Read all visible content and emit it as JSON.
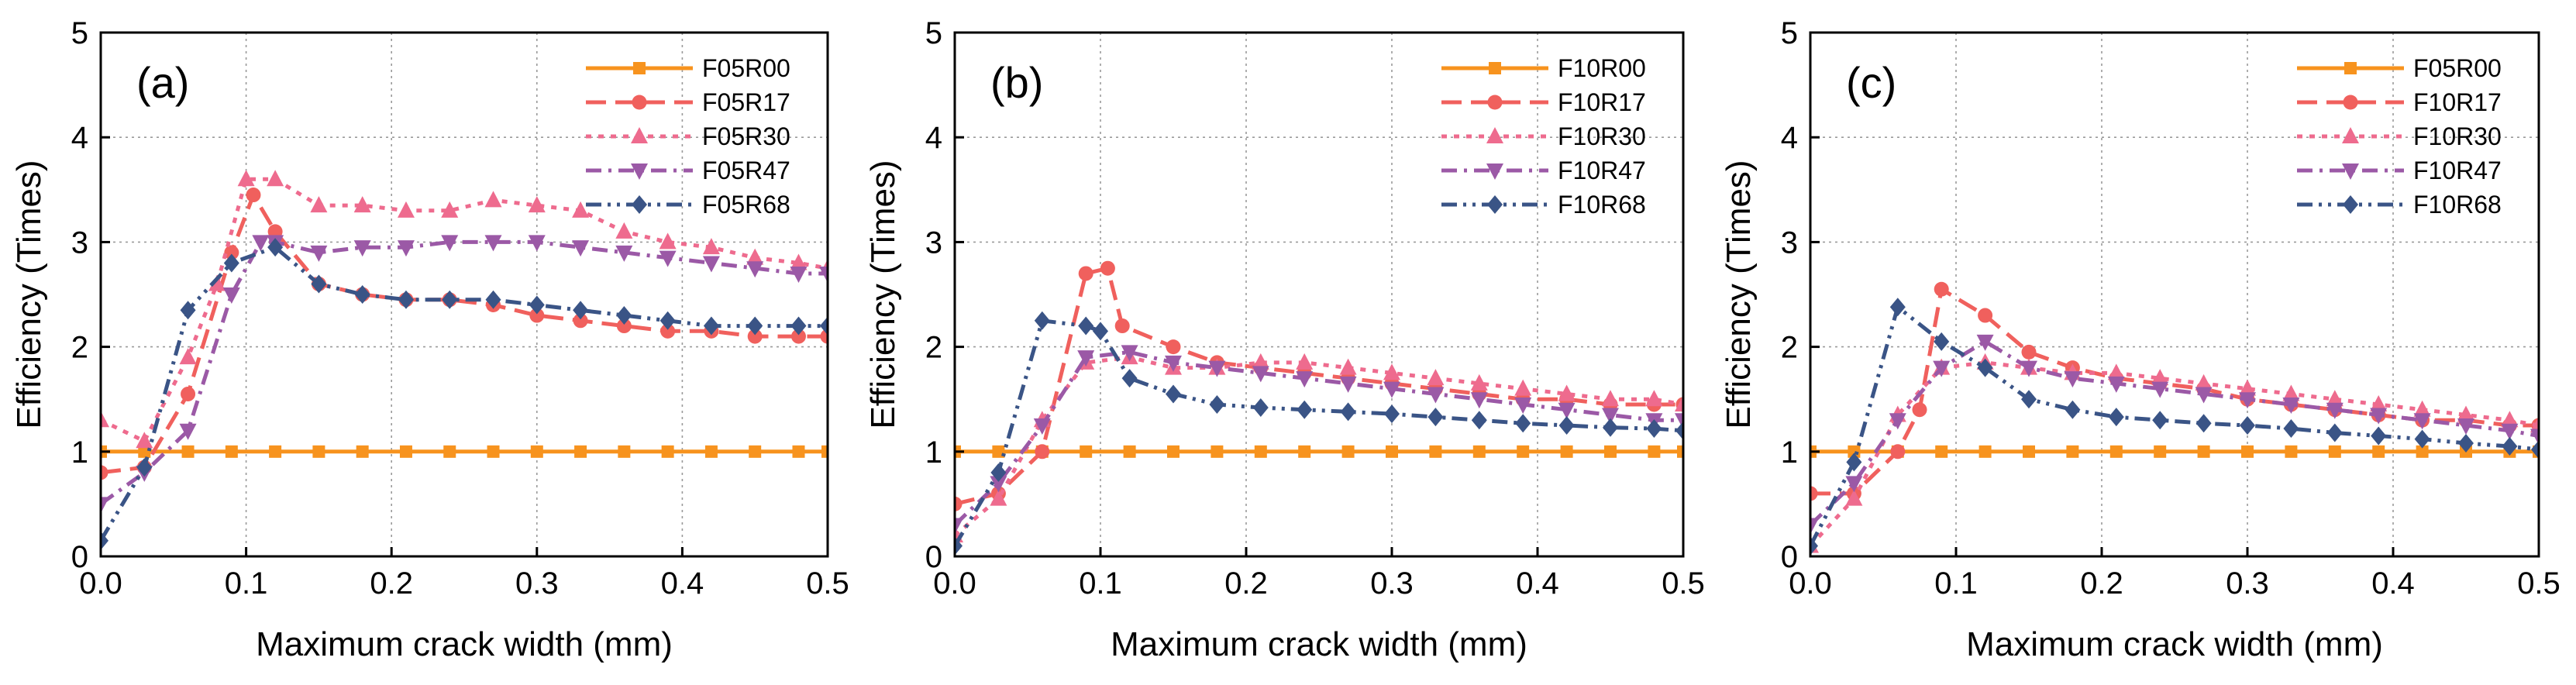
{
  "chart_data": [
    {
      "type": "line",
      "panel_label": "(a)",
      "xlabel": "Maximum crack width (mm)",
      "ylabel": "Efficiency (Times)",
      "xlim": [
        0,
        0.5
      ],
      "ylim": [
        0,
        5
      ],
      "xticks": [
        "0.0",
        "0.1",
        "0.2",
        "0.3",
        "0.4",
        "0.5"
      ],
      "yticks": [
        "0",
        "1",
        "2",
        "3",
        "4",
        "5"
      ],
      "grid": true,
      "legend_position": "top-right",
      "series": [
        {
          "name": "F05R00",
          "color": "#F7931E",
          "marker": "square",
          "dash": "solid",
          "x": [
            0,
            0.03,
            0.06,
            0.09,
            0.12,
            0.15,
            0.18,
            0.21,
            0.24,
            0.27,
            0.3,
            0.33,
            0.36,
            0.39,
            0.42,
            0.45,
            0.48,
            0.5
          ],
          "y": [
            1,
            1,
            1,
            1,
            1,
            1,
            1,
            1,
            1,
            1,
            1,
            1,
            1,
            1,
            1,
            1,
            1,
            1
          ]
        },
        {
          "name": "F05R17",
          "color": "#F0605D",
          "marker": "circle",
          "dash": "longdash",
          "x": [
            0,
            0.03,
            0.06,
            0.09,
            0.105,
            0.12,
            0.15,
            0.18,
            0.21,
            0.24,
            0.27,
            0.3,
            0.33,
            0.36,
            0.39,
            0.42,
            0.45,
            0.48,
            0.5
          ],
          "y": [
            0.8,
            0.85,
            1.55,
            2.9,
            3.45,
            3.1,
            2.6,
            2.5,
            2.45,
            2.45,
            2.4,
            2.3,
            2.25,
            2.2,
            2.15,
            2.15,
            2.1,
            2.1,
            2.1
          ]
        },
        {
          "name": "F05R30",
          "color": "#EE6B8E",
          "marker": "triangle-up",
          "dash": "dot",
          "x": [
            0,
            0.03,
            0.06,
            0.08,
            0.1,
            0.12,
            0.15,
            0.18,
            0.21,
            0.24,
            0.27,
            0.3,
            0.33,
            0.36,
            0.39,
            0.42,
            0.45,
            0.48,
            0.5
          ],
          "y": [
            1.3,
            1.1,
            1.9,
            2.6,
            3.6,
            3.6,
            3.35,
            3.35,
            3.3,
            3.3,
            3.4,
            3.35,
            3.3,
            3.1,
            3.0,
            2.95,
            2.85,
            2.8,
            2.75
          ]
        },
        {
          "name": "F05R47",
          "color": "#9B59A6",
          "marker": "triangle-down",
          "dash": "dashdot",
          "x": [
            0,
            0.03,
            0.06,
            0.09,
            0.11,
            0.12,
            0.15,
            0.18,
            0.21,
            0.24,
            0.27,
            0.3,
            0.33,
            0.36,
            0.39,
            0.42,
            0.45,
            0.48,
            0.5
          ],
          "y": [
            0.5,
            0.8,
            1.2,
            2.5,
            3.0,
            3.0,
            2.9,
            2.95,
            2.95,
            3.0,
            3.0,
            3.0,
            2.95,
            2.9,
            2.85,
            2.8,
            2.75,
            2.7,
            2.7
          ]
        },
        {
          "name": "F05R68",
          "color": "#3A5486",
          "marker": "diamond",
          "dash": "dashdotdot",
          "x": [
            0,
            0.03,
            0.06,
            0.09,
            0.12,
            0.15,
            0.18,
            0.21,
            0.24,
            0.27,
            0.3,
            0.33,
            0.36,
            0.39,
            0.42,
            0.45,
            0.48,
            0.5
          ],
          "y": [
            0.15,
            0.85,
            2.35,
            2.8,
            2.95,
            2.6,
            2.5,
            2.45,
            2.45,
            2.45,
            2.4,
            2.35,
            2.3,
            2.25,
            2.2,
            2.2,
            2.2,
            2.2
          ]
        }
      ]
    },
    {
      "type": "line",
      "panel_label": "(b)",
      "xlabel": "Maximum crack width (mm)",
      "ylabel": "Efficiency (Times)",
      "xlim": [
        0,
        0.5
      ],
      "ylim": [
        0,
        5
      ],
      "xticks": [
        "0.0",
        "0.1",
        "0.2",
        "0.3",
        "0.4",
        "0.5"
      ],
      "yticks": [
        "0",
        "1",
        "2",
        "3",
        "4",
        "5"
      ],
      "grid": true,
      "legend_position": "top-right",
      "series": [
        {
          "name": "F10R00",
          "color": "#F7931E",
          "marker": "square",
          "dash": "solid",
          "x": [
            0,
            0.03,
            0.06,
            0.09,
            0.12,
            0.15,
            0.18,
            0.21,
            0.24,
            0.27,
            0.3,
            0.33,
            0.36,
            0.39,
            0.42,
            0.45,
            0.48,
            0.5
          ],
          "y": [
            1,
            1,
            1,
            1,
            1,
            1,
            1,
            1,
            1,
            1,
            1,
            1,
            1,
            1,
            1,
            1,
            1,
            1
          ]
        },
        {
          "name": "F10R17",
          "color": "#F0605D",
          "marker": "circle",
          "dash": "longdash",
          "x": [
            0,
            0.03,
            0.06,
            0.09,
            0.105,
            0.115,
            0.15,
            0.18,
            0.21,
            0.24,
            0.27,
            0.3,
            0.33,
            0.36,
            0.39,
            0.42,
            0.45,
            0.48,
            0.5
          ],
          "y": [
            0.5,
            0.6,
            1.0,
            2.7,
            2.75,
            2.2,
            2.0,
            1.85,
            1.8,
            1.75,
            1.7,
            1.65,
            1.6,
            1.55,
            1.5,
            1.5,
            1.45,
            1.45,
            1.45
          ]
        },
        {
          "name": "F10R30",
          "color": "#EE6B8E",
          "marker": "triangle-up",
          "dash": "dot",
          "x": [
            0,
            0.03,
            0.06,
            0.09,
            0.12,
            0.15,
            0.18,
            0.21,
            0.24,
            0.27,
            0.3,
            0.33,
            0.36,
            0.39,
            0.42,
            0.45,
            0.48,
            0.5
          ],
          "y": [
            0.2,
            0.55,
            1.3,
            1.85,
            1.9,
            1.8,
            1.8,
            1.85,
            1.85,
            1.8,
            1.75,
            1.7,
            1.65,
            1.6,
            1.55,
            1.5,
            1.5,
            1.45
          ]
        },
        {
          "name": "F10R47",
          "color": "#9B59A6",
          "marker": "triangle-down",
          "dash": "dashdot",
          "x": [
            0,
            0.03,
            0.06,
            0.09,
            0.12,
            0.15,
            0.18,
            0.21,
            0.24,
            0.27,
            0.3,
            0.33,
            0.36,
            0.39,
            0.42,
            0.45,
            0.48,
            0.5
          ],
          "y": [
            0.3,
            0.7,
            1.25,
            1.9,
            1.95,
            1.85,
            1.8,
            1.75,
            1.7,
            1.65,
            1.6,
            1.55,
            1.5,
            1.45,
            1.4,
            1.35,
            1.3,
            1.3
          ]
        },
        {
          "name": "F10R68",
          "color": "#3A5486",
          "marker": "diamond",
          "dash": "dashdotdot",
          "x": [
            0,
            0.03,
            0.06,
            0.09,
            0.1,
            0.12,
            0.15,
            0.18,
            0.21,
            0.24,
            0.27,
            0.3,
            0.33,
            0.36,
            0.39,
            0.42,
            0.45,
            0.48,
            0.5
          ],
          "y": [
            0.1,
            0.8,
            2.25,
            2.2,
            2.15,
            1.7,
            1.55,
            1.45,
            1.42,
            1.4,
            1.38,
            1.36,
            1.33,
            1.3,
            1.27,
            1.25,
            1.23,
            1.22,
            1.2
          ]
        }
      ]
    },
    {
      "type": "line",
      "panel_label": "(c)",
      "xlabel": "Maximum crack width (mm)",
      "ylabel": "Efficiency (Times)",
      "xlim": [
        0,
        0.5
      ],
      "ylim": [
        0,
        5
      ],
      "xticks": [
        "0.0",
        "0.1",
        "0.2",
        "0.3",
        "0.4",
        "0.5"
      ],
      "yticks": [
        "0",
        "1",
        "2",
        "3",
        "4",
        "5"
      ],
      "grid": true,
      "legend_position": "top-right",
      "series": [
        {
          "name": "F05R00",
          "color": "#F7931E",
          "marker": "square",
          "dash": "solid",
          "x": [
            0,
            0.03,
            0.06,
            0.09,
            0.12,
            0.15,
            0.18,
            0.21,
            0.24,
            0.27,
            0.3,
            0.33,
            0.36,
            0.39,
            0.42,
            0.45,
            0.48,
            0.5
          ],
          "y": [
            1,
            1,
            1,
            1,
            1,
            1,
            1,
            1,
            1,
            1,
            1,
            1,
            1,
            1,
            1,
            1,
            1,
            1
          ]
        },
        {
          "name": "F10R17",
          "color": "#F0605D",
          "marker": "circle",
          "dash": "longdash",
          "x": [
            0,
            0.03,
            0.06,
            0.075,
            0.09,
            0.12,
            0.15,
            0.18,
            0.21,
            0.24,
            0.27,
            0.3,
            0.33,
            0.36,
            0.39,
            0.42,
            0.45,
            0.48,
            0.5
          ],
          "y": [
            0.6,
            0.6,
            1.0,
            1.4,
            2.55,
            2.3,
            1.95,
            1.8,
            1.7,
            1.65,
            1.6,
            1.5,
            1.45,
            1.4,
            1.35,
            1.3,
            1.3,
            1.25,
            1.25
          ]
        },
        {
          "name": "F10R30",
          "color": "#EE6B8E",
          "marker": "triangle-up",
          "dash": "dot",
          "x": [
            0,
            0.03,
            0.06,
            0.09,
            0.12,
            0.15,
            0.18,
            0.21,
            0.24,
            0.27,
            0.3,
            0.33,
            0.36,
            0.39,
            0.42,
            0.45,
            0.48,
            0.5
          ],
          "y": [
            0.1,
            0.55,
            1.35,
            1.8,
            1.85,
            1.8,
            1.75,
            1.75,
            1.7,
            1.65,
            1.6,
            1.55,
            1.5,
            1.45,
            1.4,
            1.35,
            1.3,
            1.25
          ]
        },
        {
          "name": "F10R47",
          "color": "#9B59A6",
          "marker": "triangle-down",
          "dash": "dashdot",
          "x": [
            0,
            0.03,
            0.06,
            0.09,
            0.12,
            0.15,
            0.18,
            0.21,
            0.24,
            0.27,
            0.3,
            0.33,
            0.36,
            0.39,
            0.42,
            0.45,
            0.48,
            0.5
          ],
          "y": [
            0.3,
            0.7,
            1.3,
            1.8,
            2.05,
            1.8,
            1.7,
            1.65,
            1.6,
            1.55,
            1.5,
            1.45,
            1.4,
            1.35,
            1.3,
            1.25,
            1.2,
            1.15
          ]
        },
        {
          "name": "F10R68",
          "color": "#3A5486",
          "marker": "diamond",
          "dash": "dashdotdot",
          "x": [
            0,
            0.03,
            0.06,
            0.09,
            0.12,
            0.15,
            0.18,
            0.21,
            0.24,
            0.27,
            0.3,
            0.33,
            0.36,
            0.39,
            0.42,
            0.45,
            0.48,
            0.5
          ],
          "y": [
            0.1,
            0.9,
            2.38,
            2.05,
            1.8,
            1.5,
            1.4,
            1.33,
            1.3,
            1.27,
            1.25,
            1.22,
            1.18,
            1.15,
            1.12,
            1.08,
            1.05,
            1.02
          ]
        }
      ]
    }
  ]
}
